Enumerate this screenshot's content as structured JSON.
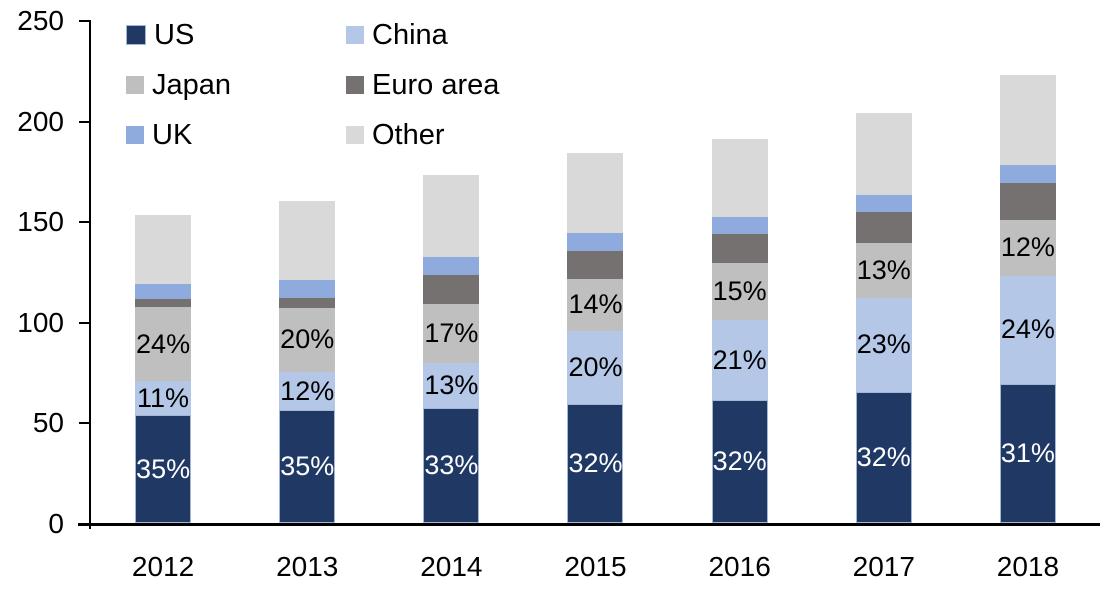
{
  "chart_data": {
    "type": "bar",
    "stacked": true,
    "title": "",
    "categories": [
      "2012",
      "2013",
      "2014",
      "2015",
      "2016",
      "2017",
      "2018"
    ],
    "ylim": [
      0,
      250
    ],
    "yticks": [
      0,
      50,
      100,
      150,
      200,
      250
    ],
    "grid": false,
    "background": "#ffffff",
    "axis_color": "#000000",
    "legend_position": "inside-top-left, two columns",
    "legend_columns": [
      [
        "US",
        "Japan",
        "UK"
      ],
      [
        "China",
        "Euro area",
        "Other"
      ]
    ],
    "totals": [
      153,
      160,
      173,
      184,
      191,
      204,
      223
    ],
    "series": [
      {
        "name": "US",
        "color": "#1f3864",
        "border": "#a6b5d2",
        "label_color": "#ffffff",
        "values": [
          53.5,
          56,
          57,
          59,
          61,
          65,
          69
        ],
        "labels": [
          "35%",
          "35%",
          "33%",
          "32%",
          "32%",
          "32%",
          "31%"
        ]
      },
      {
        "name": "China",
        "color": "#b4c7e7",
        "label_color": "#000000",
        "values": [
          17,
          19,
          22.5,
          36.5,
          40,
          47,
          54
        ],
        "labels": [
          "11%",
          "12%",
          "13%",
          "20%",
          "21%",
          "23%",
          "24%"
        ]
      },
      {
        "name": "Japan",
        "color": "#bfbfbf",
        "label_color": "#000000",
        "values": [
          37,
          32,
          29.5,
          26,
          28.5,
          27,
          27.5
        ],
        "labels": [
          "24%",
          "20%",
          "17%",
          "14%",
          "15%",
          "13%",
          "12%"
        ]
      },
      {
        "name": "Euro area",
        "color": "#767171",
        "values": [
          4,
          5,
          14,
          13.5,
          14,
          15.5,
          18.5
        ],
        "labels": null
      },
      {
        "name": "UK",
        "color": "#8faadc",
        "values": [
          7.5,
          9,
          9,
          9,
          8.5,
          8.5,
          9
        ],
        "labels": null
      },
      {
        "name": "Other",
        "color": "#d9d9d9",
        "values": [
          34,
          39,
          41,
          40,
          39,
          41,
          45
        ],
        "labels": null
      }
    ]
  }
}
